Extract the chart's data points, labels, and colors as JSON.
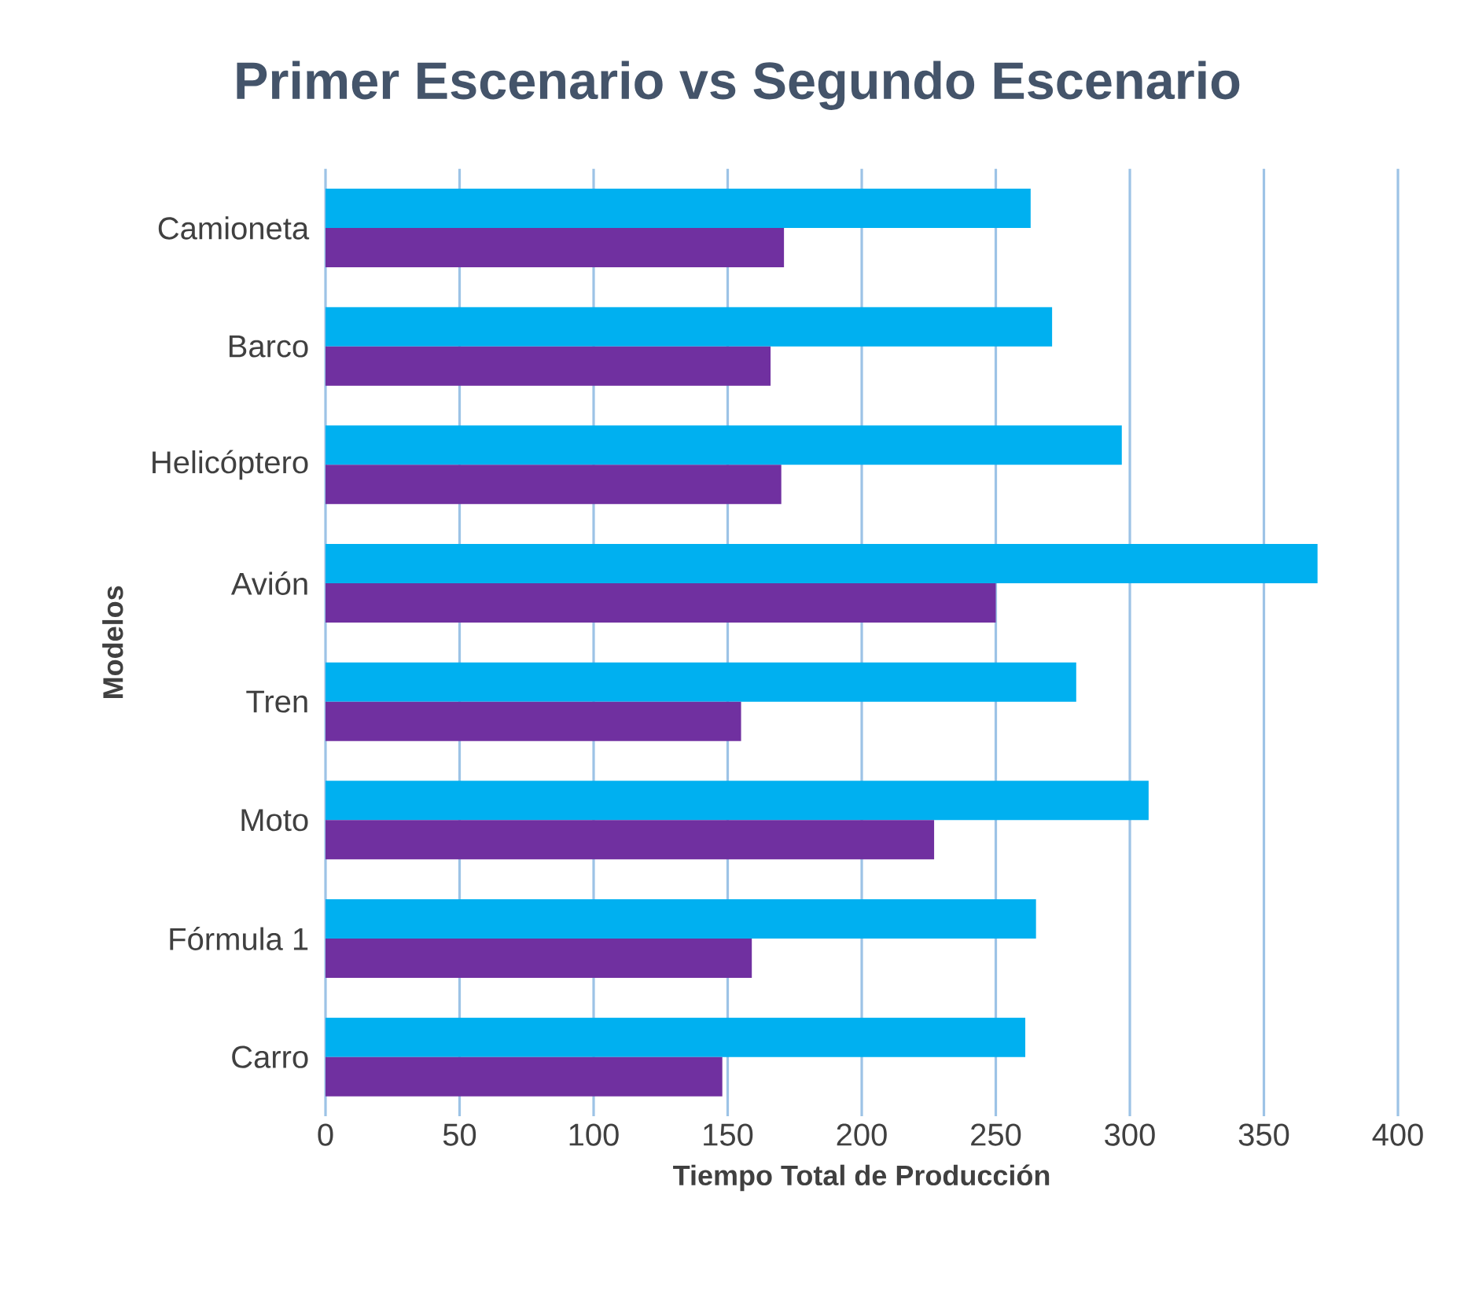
{
  "chart_data": {
    "type": "bar",
    "orientation": "horizontal",
    "title": "Primer Escenario vs Segundo Escenario",
    "xlabel": "Tiempo Total de Producción",
    "ylabel": "Modelos",
    "categories": [
      "Camioneta",
      "Barco",
      "Helicóptero",
      "Avión",
      "Tren",
      "Moto",
      "Fórmula 1",
      "Carro"
    ],
    "series": [
      {
        "color": "#00b0f0",
        "values": [
          263,
          271,
          297,
          370,
          280,
          307,
          265,
          261
        ]
      },
      {
        "color": "#7030a0",
        "values": [
          171,
          166,
          170,
          250,
          155,
          227,
          159,
          148
        ]
      }
    ],
    "xlim": [
      0,
      400
    ],
    "xticks": [
      0,
      50,
      100,
      150,
      200,
      250,
      300,
      350,
      400
    ],
    "grid": "x"
  }
}
